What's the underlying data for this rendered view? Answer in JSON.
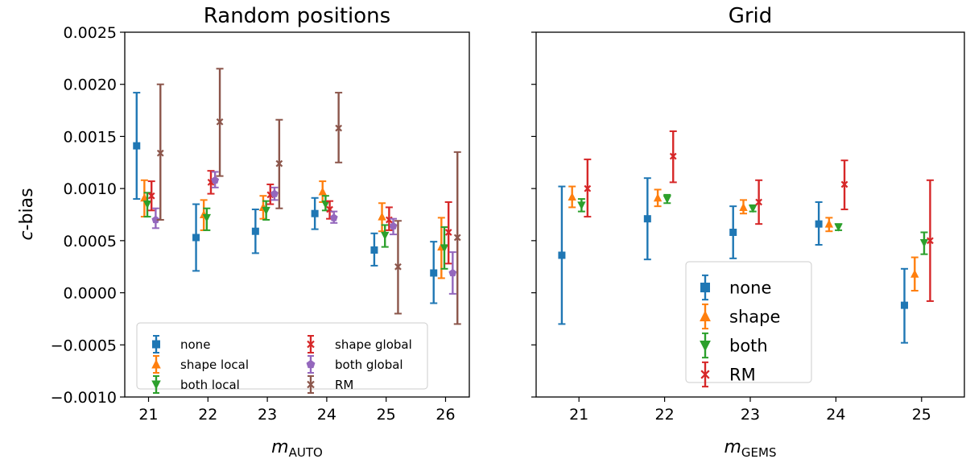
{
  "chart_data": [
    {
      "type": "errorbar",
      "title": "Random positions",
      "ylabel": "c-bias",
      "ylabel_prefix": "c",
      "ylabel_suffix": "-bias",
      "xlabel_main": "m",
      "xlabel_sub": "AUTO",
      "x_ticks": [
        "21",
        "22",
        "23",
        "24",
        "25",
        "26"
      ],
      "xlim": [
        20.6,
        26.4
      ],
      "ylim": [
        -0.001,
        0.0025
      ],
      "y_ticks": [
        "0.0025",
        "0.0020",
        "0.0015",
        "0.0010",
        "0.0005",
        "0.0000",
        "−0.0005",
        "−0.0010"
      ],
      "legend_position": "lower-left",
      "legend_columns": 2,
      "series": [
        {
          "name": "none",
          "color": "#1f77b4",
          "marker": "square",
          "offset": -0.2,
          "x": [
            21,
            22,
            23,
            24,
            25,
            26
          ],
          "y": [
            0.00141,
            0.00053,
            0.00059,
            0.00076,
            0.00041,
            0.00019
          ],
          "yerr_low": [
            0.0009,
            0.00021,
            0.00038,
            0.00061,
            0.00026,
            -0.0001
          ],
          "yerr_high": [
            0.00192,
            0.00085,
            0.0008,
            0.00091,
            0.00057,
            0.00049
          ]
        },
        {
          "name": "shape local",
          "color": "#ff7f0e",
          "marker": "triangle-up",
          "offset": -0.07,
          "x": [
            21,
            22,
            23,
            24,
            25,
            26
          ],
          "y": [
            0.00091,
            0.00075,
            0.00082,
            0.00097,
            0.00073,
            0.00044
          ],
          "yerr_low": [
            0.00073,
            0.0006,
            0.00071,
            0.00087,
            0.00059,
            0.00014
          ],
          "yerr_high": [
            0.00108,
            0.00089,
            0.00093,
            0.00107,
            0.00086,
            0.00072
          ]
        },
        {
          "name": "both local",
          "color": "#2ca02c",
          "marker": "triangle-down",
          "offset": -0.02,
          "x": [
            21,
            22,
            23,
            24,
            25,
            26
          ],
          "y": [
            0.00085,
            0.00072,
            0.00079,
            0.00085,
            0.00055,
            0.00043
          ],
          "yerr_low": [
            0.00073,
            0.0006,
            0.0007,
            0.00079,
            0.00044,
            0.00023
          ],
          "yerr_high": [
            0.00096,
            0.00081,
            0.00088,
            0.00093,
            0.00065,
            0.00063
          ]
        },
        {
          "name": "shape global",
          "color": "#d62728",
          "marker": "x",
          "offset": 0.05,
          "x": [
            21,
            22,
            23,
            24,
            25,
            26
          ],
          "y": [
            0.00093,
            0.00106,
            0.00094,
            0.0008,
            0.0007,
            0.00058
          ],
          "yerr_low": [
            0.00079,
            0.00095,
            0.00085,
            0.00071,
            0.0006,
            0.00028
          ],
          "yerr_high": [
            0.00107,
            0.00117,
            0.00104,
            0.00088,
            0.00082,
            0.00087
          ]
        },
        {
          "name": "both global",
          "color": "#9467bd",
          "marker": "pentagon",
          "offset": 0.12,
          "x": [
            21,
            22,
            23,
            24,
            25,
            26
          ],
          "y": [
            0.0007,
            0.00108,
            0.00095,
            0.00072,
            0.00064,
            0.00019
          ],
          "yerr_low": [
            0.00062,
            0.00101,
            0.00089,
            0.00067,
            0.00056,
            -1e-05
          ],
          "yerr_high": [
            0.00081,
            0.00116,
            0.00101,
            0.00078,
            0.00071,
            0.00039
          ]
        },
        {
          "name": "RM",
          "color": "#8c564b",
          "marker": "x",
          "offset": 0.2,
          "x": [
            21,
            22,
            23,
            24,
            25,
            26
          ],
          "y": [
            0.00134,
            0.00164,
            0.00124,
            0.00158,
            0.00025,
            0.00053
          ],
          "yerr_low": [
            0.0007,
            0.00112,
            0.00081,
            0.00125,
            -0.0002,
            -0.0003
          ],
          "yerr_high": [
            0.002,
            0.00215,
            0.00166,
            0.00192,
            0.00069,
            0.00135
          ]
        }
      ]
    },
    {
      "type": "errorbar",
      "title": "Grid",
      "xlabel_main": "m",
      "xlabel_sub": "GEMS",
      "x_ticks": [
        "21",
        "22",
        "23",
        "24",
        "25"
      ],
      "xlim": [
        20.5,
        25.5
      ],
      "ylim": [
        -0.001,
        0.0025
      ],
      "legend_position": "lower-center",
      "legend_columns": 1,
      "series": [
        {
          "name": "none",
          "color": "#1f77b4",
          "marker": "square",
          "offset": -0.2,
          "x": [
            21,
            22,
            23,
            24,
            25
          ],
          "y": [
            0.00036,
            0.00071,
            0.00058,
            0.00066,
            -0.00012
          ],
          "yerr_low": [
            -0.0003,
            0.00032,
            0.00033,
            0.00046,
            -0.00048
          ],
          "yerr_high": [
            0.00102,
            0.0011,
            0.00083,
            0.00087,
            0.00023
          ]
        },
        {
          "name": "shape",
          "color": "#ff7f0e",
          "marker": "triangle-up",
          "offset": -0.08,
          "x": [
            21,
            22,
            23,
            24,
            25
          ],
          "y": [
            0.00092,
            0.00091,
            0.00082,
            0.00066,
            0.00018
          ],
          "yerr_low": [
            0.00082,
            0.00083,
            0.00076,
            0.00059,
            2e-05
          ],
          "yerr_high": [
            0.00102,
            0.00099,
            0.00089,
            0.00072,
            0.00034
          ]
        },
        {
          "name": "both",
          "color": "#2ca02c",
          "marker": "triangle-down",
          "offset": 0.03,
          "x": [
            21,
            22,
            23,
            24,
            25
          ],
          "y": [
            0.00084,
            0.0009,
            0.00081,
            0.00063,
            0.00048
          ],
          "yerr_low": [
            0.00078,
            0.00086,
            0.00078,
            0.0006,
            0.00037
          ],
          "yerr_high": [
            0.0009,
            0.00094,
            0.00084,
            0.00066,
            0.00058
          ]
        },
        {
          "name": "RM",
          "color": "#d62728",
          "marker": "x",
          "offset": 0.1,
          "x": [
            21,
            22,
            23,
            24,
            25
          ],
          "y": [
            0.001,
            0.00131,
            0.00087,
            0.00104,
            0.0005
          ],
          "yerr_low": [
            0.00073,
            0.00106,
            0.00066,
            0.0008,
            -8e-05
          ],
          "yerr_high": [
            0.00128,
            0.00155,
            0.00108,
            0.00127,
            0.00108
          ]
        }
      ]
    }
  ]
}
